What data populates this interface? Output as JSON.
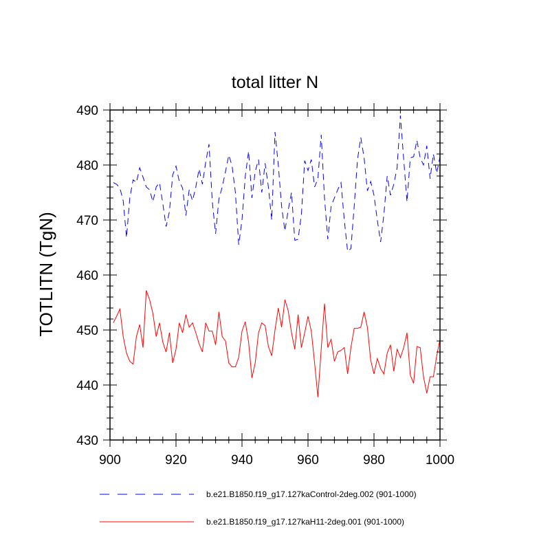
{
  "chart_data": {
    "type": "line",
    "title": "total litter N",
    "xlabel": "",
    "ylabel": "TOTLITN  (TgN)",
    "xlim": [
      900,
      1000
    ],
    "ylim": [
      430,
      490
    ],
    "x_ticks": [
      900,
      920,
      940,
      960,
      980,
      1000
    ],
    "y_ticks": [
      430,
      440,
      450,
      460,
      470,
      480,
      490
    ],
    "x": [
      901,
      902,
      903,
      904,
      905,
      906,
      907,
      908,
      909,
      910,
      911,
      912,
      913,
      914,
      915,
      916,
      917,
      918,
      919,
      920,
      921,
      922,
      923,
      924,
      925,
      926,
      927,
      928,
      929,
      930,
      931,
      932,
      933,
      934,
      935,
      936,
      937,
      938,
      939,
      940,
      941,
      942,
      943,
      944,
      945,
      946,
      947,
      948,
      949,
      950,
      951,
      952,
      953,
      954,
      955,
      956,
      957,
      958,
      959,
      960,
      961,
      962,
      963,
      964,
      965,
      966,
      967,
      968,
      969,
      970,
      971,
      972,
      973,
      974,
      975,
      976,
      977,
      978,
      979,
      980,
      981,
      982,
      983,
      984,
      985,
      986,
      987,
      988,
      989,
      990,
      991,
      992,
      993,
      994,
      995,
      996,
      997,
      998,
      999,
      1000
    ],
    "series": [
      {
        "name": "b.e21.B1850.f19_g17.127kaControl-2deg.002 (901-1000)",
        "color": "#0000ff",
        "dash": "dashed",
        "values": [
          476.8,
          476.5,
          475.8,
          473.5,
          466.8,
          474.0,
          477.3,
          476.8,
          479.5,
          477.8,
          476.0,
          475.5,
          473.3,
          476.0,
          476.8,
          473.0,
          468.8,
          471.5,
          478.2,
          479.8,
          477.0,
          475.8,
          470.8,
          475.5,
          473.5,
          476.0,
          479.3,
          476.5,
          480.5,
          483.8,
          473.3,
          467.5,
          473.8,
          476.0,
          478.8,
          481.8,
          479.8,
          475.0,
          465.5,
          470.0,
          478.0,
          482.5,
          474.0,
          478.8,
          481.0,
          475.0,
          480.3,
          476.0,
          470.0,
          486.0,
          480.0,
          472.5,
          468.0,
          471.8,
          475.0,
          466.3,
          466.5,
          471.0,
          480.8,
          479.0,
          481.0,
          476.0,
          477.5,
          485.5,
          474.0,
          466.5,
          472.5,
          474.0,
          475.5,
          476.8,
          470.0,
          464.3,
          464.8,
          472.5,
          481.0,
          485.0,
          481.3,
          475.3,
          477.0,
          474.5,
          470.0,
          466.0,
          471.0,
          478.0,
          474.5,
          476.5,
          479.5,
          489.0,
          481.0,
          473.3,
          481.3,
          481.5,
          484.5,
          481.3,
          480.0,
          483.5,
          477.5,
          482.0,
          478.5,
          481.5
        ]
      },
      {
        "name": "b.e21.B1850.f19_g17.127kaH11-2deg.001 (901-1000)",
        "color": "#ff0000",
        "dash": "solid",
        "values": [
          451.3,
          452.5,
          453.8,
          448.8,
          445.8,
          444.3,
          443.8,
          448.8,
          451.0,
          446.8,
          457.2,
          455.5,
          453.0,
          448.8,
          451.3,
          447.8,
          446.0,
          449.5,
          444.0,
          446.5,
          451.3,
          449.5,
          452.8,
          450.5,
          451.3,
          449.5,
          447.5,
          446.0,
          451.3,
          449.8,
          449.8,
          447.3,
          453.3,
          448.8,
          448.0,
          444.0,
          443.3,
          443.3,
          445.0,
          449.8,
          451.5,
          447.8,
          441.3,
          444.0,
          449.5,
          451.3,
          450.8,
          447.0,
          445.3,
          450.0,
          454.0,
          450.5,
          455.5,
          453.5,
          449.5,
          446.5,
          452.8,
          446.8,
          449.5,
          452.5,
          449.8,
          444.0,
          437.8,
          446.5,
          454.8,
          446.8,
          448.3,
          444.3,
          446.0,
          446.3,
          446.8,
          442.0,
          446.8,
          450.3,
          450.3,
          450.5,
          453.3,
          450.5,
          444.5,
          442.0,
          444.8,
          443.0,
          442.0,
          445.8,
          447.3,
          442.5,
          446.5,
          445.0,
          446.8,
          449.5,
          441.8,
          440.3,
          447.0,
          446.8,
          441.5,
          438.5,
          441.5,
          441.5,
          445.3,
          448.3
        ]
      }
    ],
    "legend": [
      {
        "label": "b.e21.B1850.f19_g17.127kaControl-2deg.002 (901-1000)",
        "color": "#0000ff",
        "dash": "dashed"
      },
      {
        "label": "b.e21.B1850.f19_g17.127kaH11-2deg.001 (901-1000)",
        "color": "#ff0000",
        "dash": "solid"
      }
    ],
    "legend_position": "bottom",
    "grid": false
  }
}
